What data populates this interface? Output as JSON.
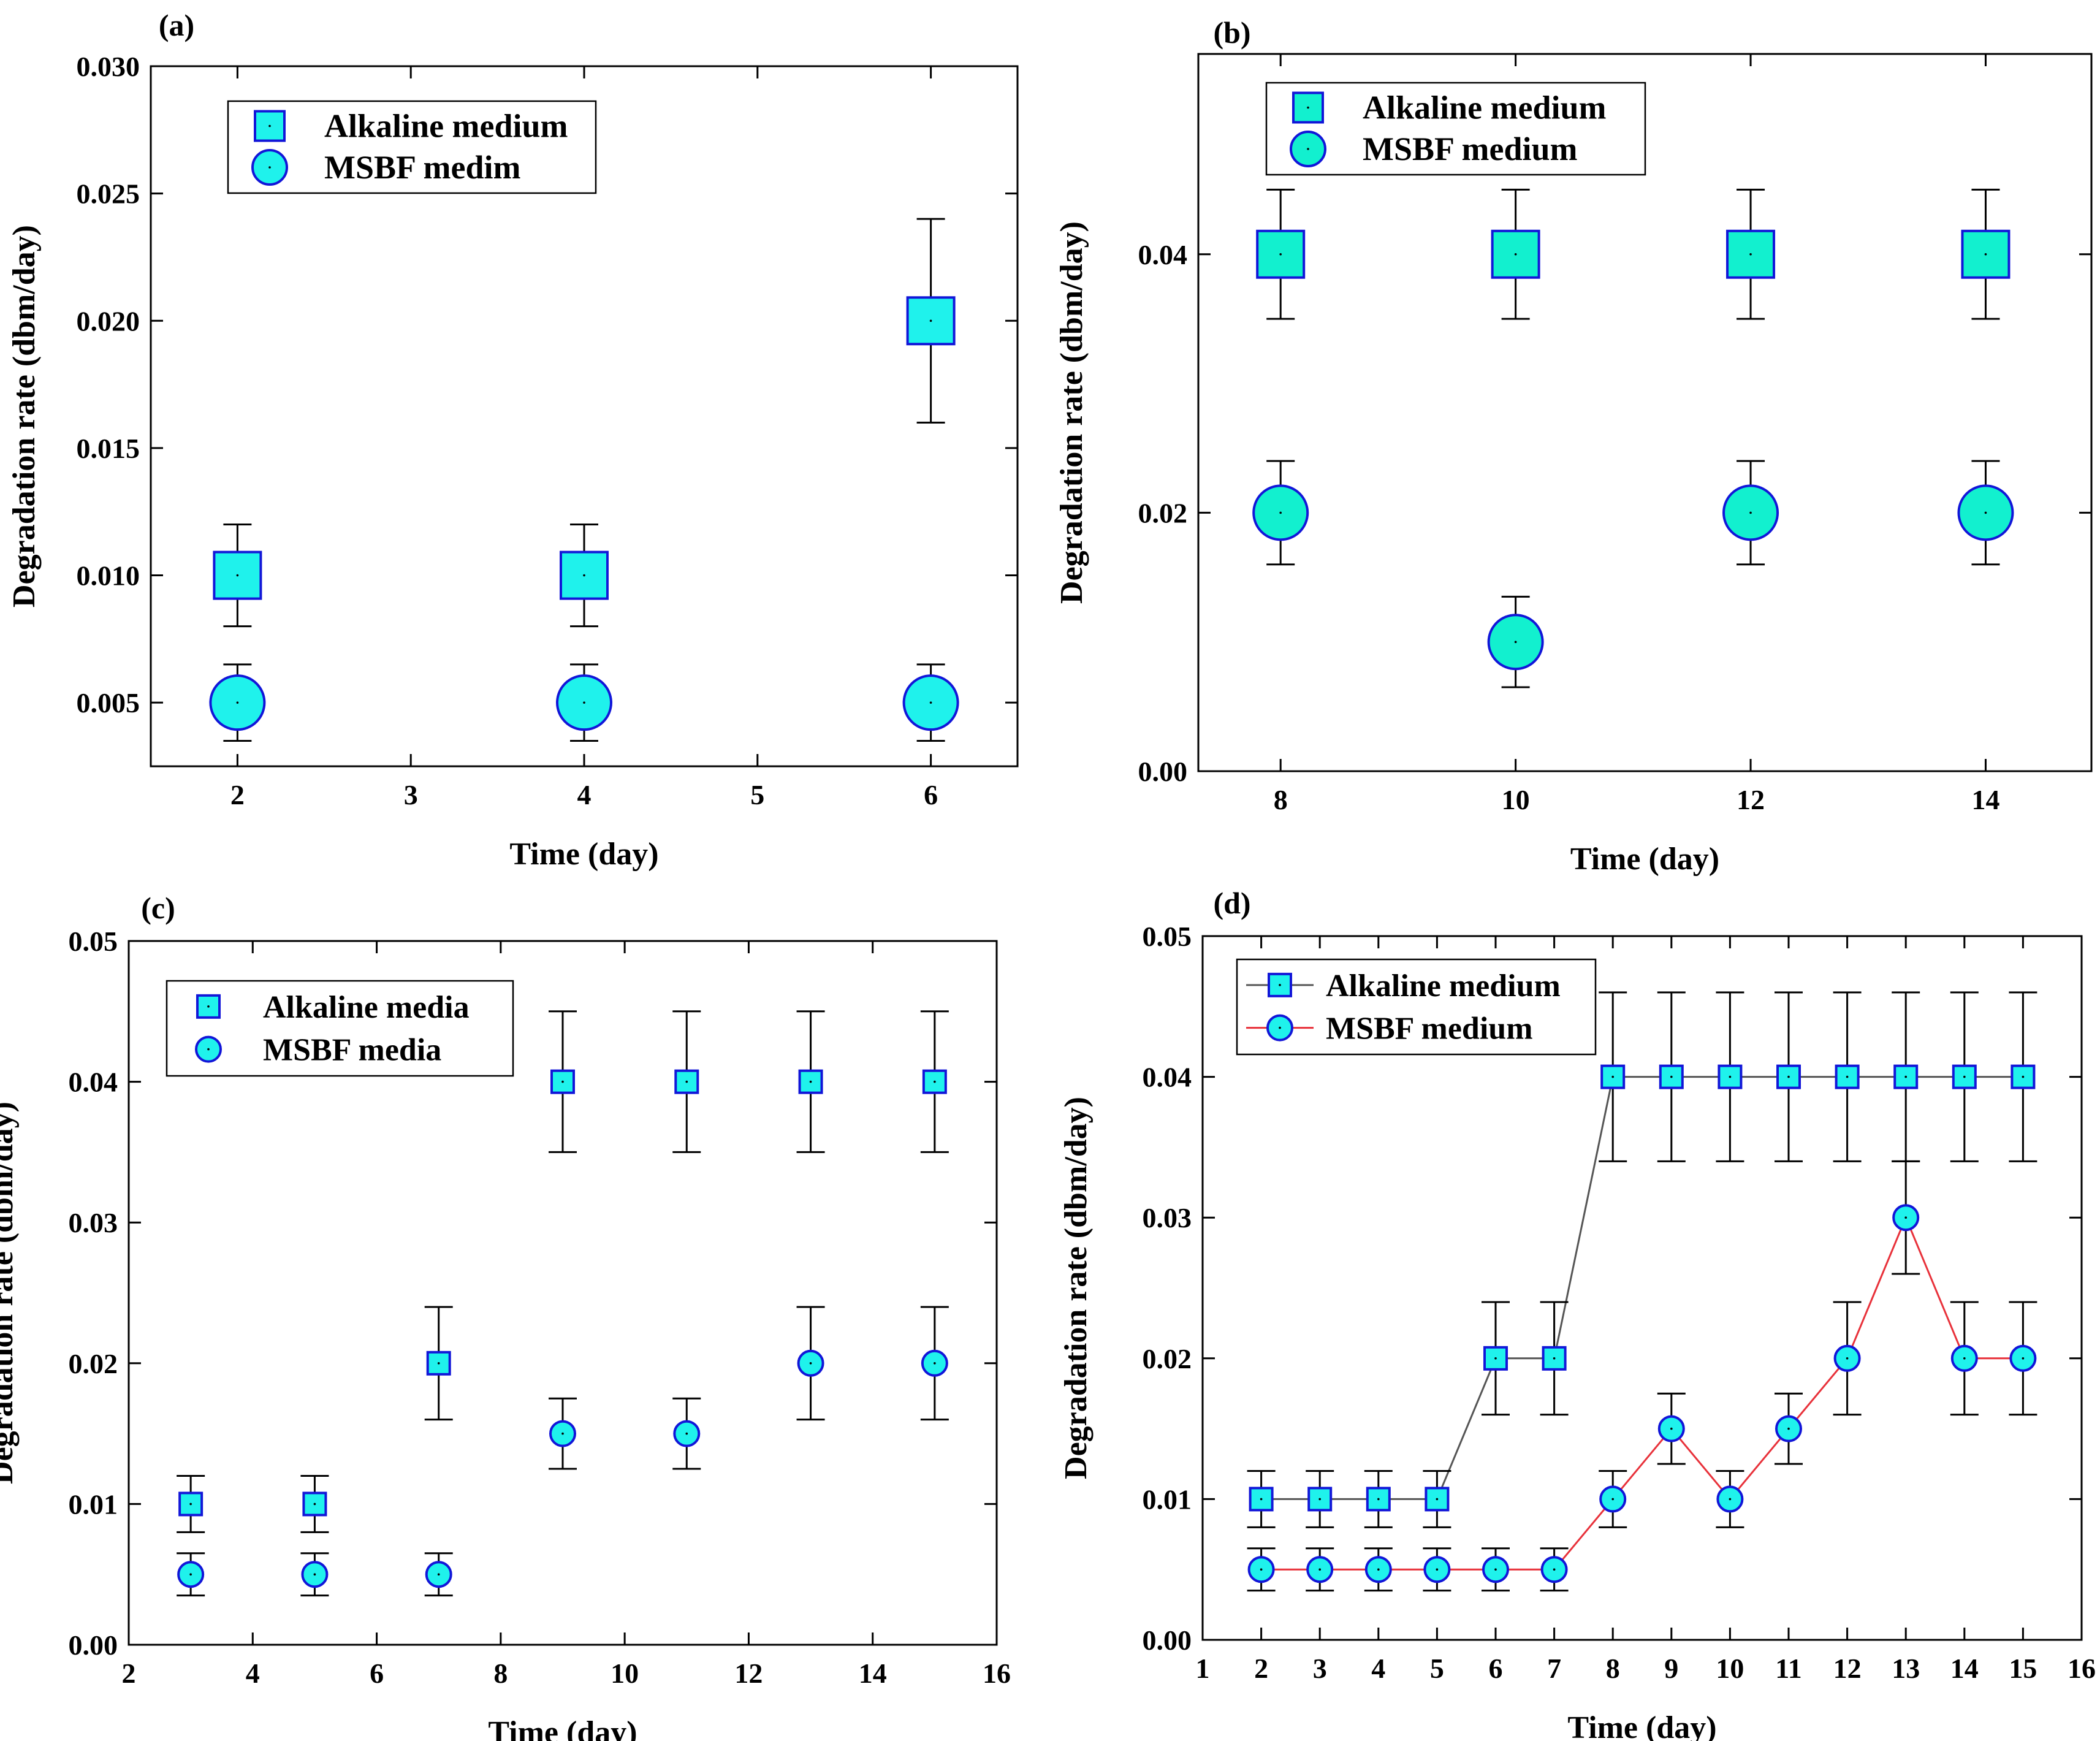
{
  "colors": {
    "marker_fill": "#1ff2ec",
    "marker_fill_b": "#12f0cf",
    "marker_edge": "#1216d8",
    "error_bar": "#000000",
    "line_alkaline": "#555555",
    "line_msbf": "#e8313a"
  },
  "chart_data": [
    {
      "panel": "(a)",
      "type": "scatter",
      "xlabel": "Time (day)",
      "ylabel": "Degradation rate (dbm/day)",
      "xlim": [
        1.5,
        6.5
      ],
      "ylim": [
        0.0025,
        0.03
      ],
      "xticks": [
        2,
        3,
        4,
        5,
        6
      ],
      "xtick_labels": [
        "2",
        "3",
        "4",
        "5",
        "6"
      ],
      "yticks": [
        0.005,
        0.01,
        0.015,
        0.02,
        0.025,
        0.03
      ],
      "ytick_labels": [
        "0.005",
        "0.010",
        "0.015",
        "0.020",
        "0.025",
        "0.030"
      ],
      "legend": {
        "position": "top-left"
      },
      "series": [
        {
          "name": "Alkaline medium",
          "marker": "square",
          "x": [
            2,
            4,
            6
          ],
          "values": [
            0.01,
            0.01,
            0.02
          ],
          "err": [
            0.002,
            0.002,
            0.004
          ]
        },
        {
          "name": "MSBF medim",
          "marker": "circle",
          "x": [
            2,
            4,
            6
          ],
          "values": [
            0.005,
            0.005,
            0.005
          ],
          "err": [
            0.0015,
            0.0015,
            0.0015
          ]
        }
      ]
    },
    {
      "panel": "(b)",
      "type": "scatter",
      "xlabel": "Time (day)",
      "ylabel": "Degradation rate (dbm/day)",
      "xlim": [
        7.3,
        14.9
      ],
      "ylim": [
        0.0,
        0.0555
      ],
      "xticks": [
        8,
        10,
        12,
        14
      ],
      "xtick_labels": [
        "8",
        "10",
        "12",
        "14"
      ],
      "yticks": [
        0.0,
        0.02,
        0.04
      ],
      "ytick_labels": [
        "0.00",
        "0.02",
        "0.04"
      ],
      "legend": {
        "position": "top-left"
      },
      "series": [
        {
          "name": "Alkaline medium",
          "marker": "square",
          "x": [
            8,
            10,
            12,
            14
          ],
          "values": [
            0.04,
            0.04,
            0.04,
            0.04
          ],
          "err": [
            0.005,
            0.005,
            0.005,
            0.005
          ]
        },
        {
          "name": "MSBF medium",
          "marker": "circle",
          "x": [
            8,
            10,
            12,
            14
          ],
          "values": [
            0.02,
            0.01,
            0.02,
            0.02
          ],
          "err": [
            0.004,
            0.0035,
            0.004,
            0.004
          ]
        }
      ]
    },
    {
      "panel": "(c)",
      "type": "scatter",
      "xlabel": "Time (day)",
      "ylabel": "Degradation rate (dbm/day)",
      "xlim": [
        2,
        16
      ],
      "ylim": [
        0.0,
        0.05
      ],
      "xticks": [
        2,
        4,
        6,
        8,
        10,
        12,
        14,
        16
      ],
      "xtick_labels": [
        "2",
        "4",
        "6",
        "8",
        "10",
        "12",
        "14",
        "16"
      ],
      "yticks": [
        0.0,
        0.01,
        0.02,
        0.03,
        0.04,
        0.05
      ],
      "ytick_labels": [
        "0.00",
        "0.01",
        "0.02",
        "0.03",
        "0.04",
        "0.05"
      ],
      "legend": {
        "position": "top-left"
      },
      "series": [
        {
          "name": "Alkaline media",
          "marker": "square",
          "x": [
            3,
            5,
            7,
            9,
            11,
            13,
            15
          ],
          "values": [
            0.01,
            0.01,
            0.02,
            0.04,
            0.04,
            0.04,
            0.04
          ],
          "err": [
            0.002,
            0.002,
            0.004,
            0.005,
            0.005,
            0.005,
            0.005
          ]
        },
        {
          "name": "MSBF media",
          "marker": "circle",
          "x": [
            3,
            5,
            7,
            9,
            11,
            13,
            15
          ],
          "values": [
            0.005,
            0.005,
            0.005,
            0.015,
            0.015,
            0.02,
            0.02
          ],
          "err": [
            0.0015,
            0.0015,
            0.0015,
            0.0025,
            0.0025,
            0.004,
            0.004
          ]
        }
      ]
    },
    {
      "panel": "(d)",
      "type": "line",
      "xlabel": "Time (day)",
      "ylabel": "Degradation rate (dbm/day)",
      "xlim": [
        1,
        16
      ],
      "ylim": [
        0.0,
        0.05
      ],
      "xticks": [
        1,
        2,
        3,
        4,
        5,
        6,
        7,
        8,
        9,
        10,
        11,
        12,
        13,
        14,
        15,
        16
      ],
      "xtick_labels": [
        "1",
        "2",
        "3",
        "4",
        "5",
        "6",
        "7",
        "8",
        "9",
        "10",
        "11",
        "12",
        "13",
        "14",
        "15",
        "16"
      ],
      "yticks": [
        0.0,
        0.01,
        0.02,
        0.03,
        0.04,
        0.05
      ],
      "ytick_labels": [
        "0.00",
        "0.01",
        "0.02",
        "0.03",
        "0.04",
        "0.05"
      ],
      "legend": {
        "position": "top-left"
      },
      "series": [
        {
          "name": "Alkaline medium",
          "marker": "square",
          "line": true,
          "x": [
            2,
            3,
            4,
            5,
            6,
            7,
            8,
            9,
            10,
            11,
            12,
            13,
            14,
            15
          ],
          "values": [
            0.01,
            0.01,
            0.01,
            0.01,
            0.02,
            0.02,
            0.04,
            0.04,
            0.04,
            0.04,
            0.04,
            0.04,
            0.04,
            0.04
          ],
          "err": [
            0.002,
            0.002,
            0.002,
            0.002,
            0.004,
            0.004,
            0.006,
            0.006,
            0.006,
            0.006,
            0.006,
            0.006,
            0.006,
            0.006
          ]
        },
        {
          "name": "MSBF medium",
          "marker": "circle",
          "line": true,
          "x": [
            2,
            3,
            4,
            5,
            6,
            7,
            8,
            9,
            10,
            11,
            12,
            13,
            14,
            15
          ],
          "values": [
            0.005,
            0.005,
            0.005,
            0.005,
            0.005,
            0.005,
            0.01,
            0.015,
            0.01,
            0.015,
            0.02,
            0.03,
            0.02,
            0.02
          ],
          "err": [
            0.0015,
            0.0015,
            0.0015,
            0.0015,
            0.0015,
            0.0015,
            0.002,
            0.0025,
            0.002,
            0.0025,
            0.004,
            0.004,
            0.004,
            0.004
          ]
        }
      ]
    }
  ]
}
